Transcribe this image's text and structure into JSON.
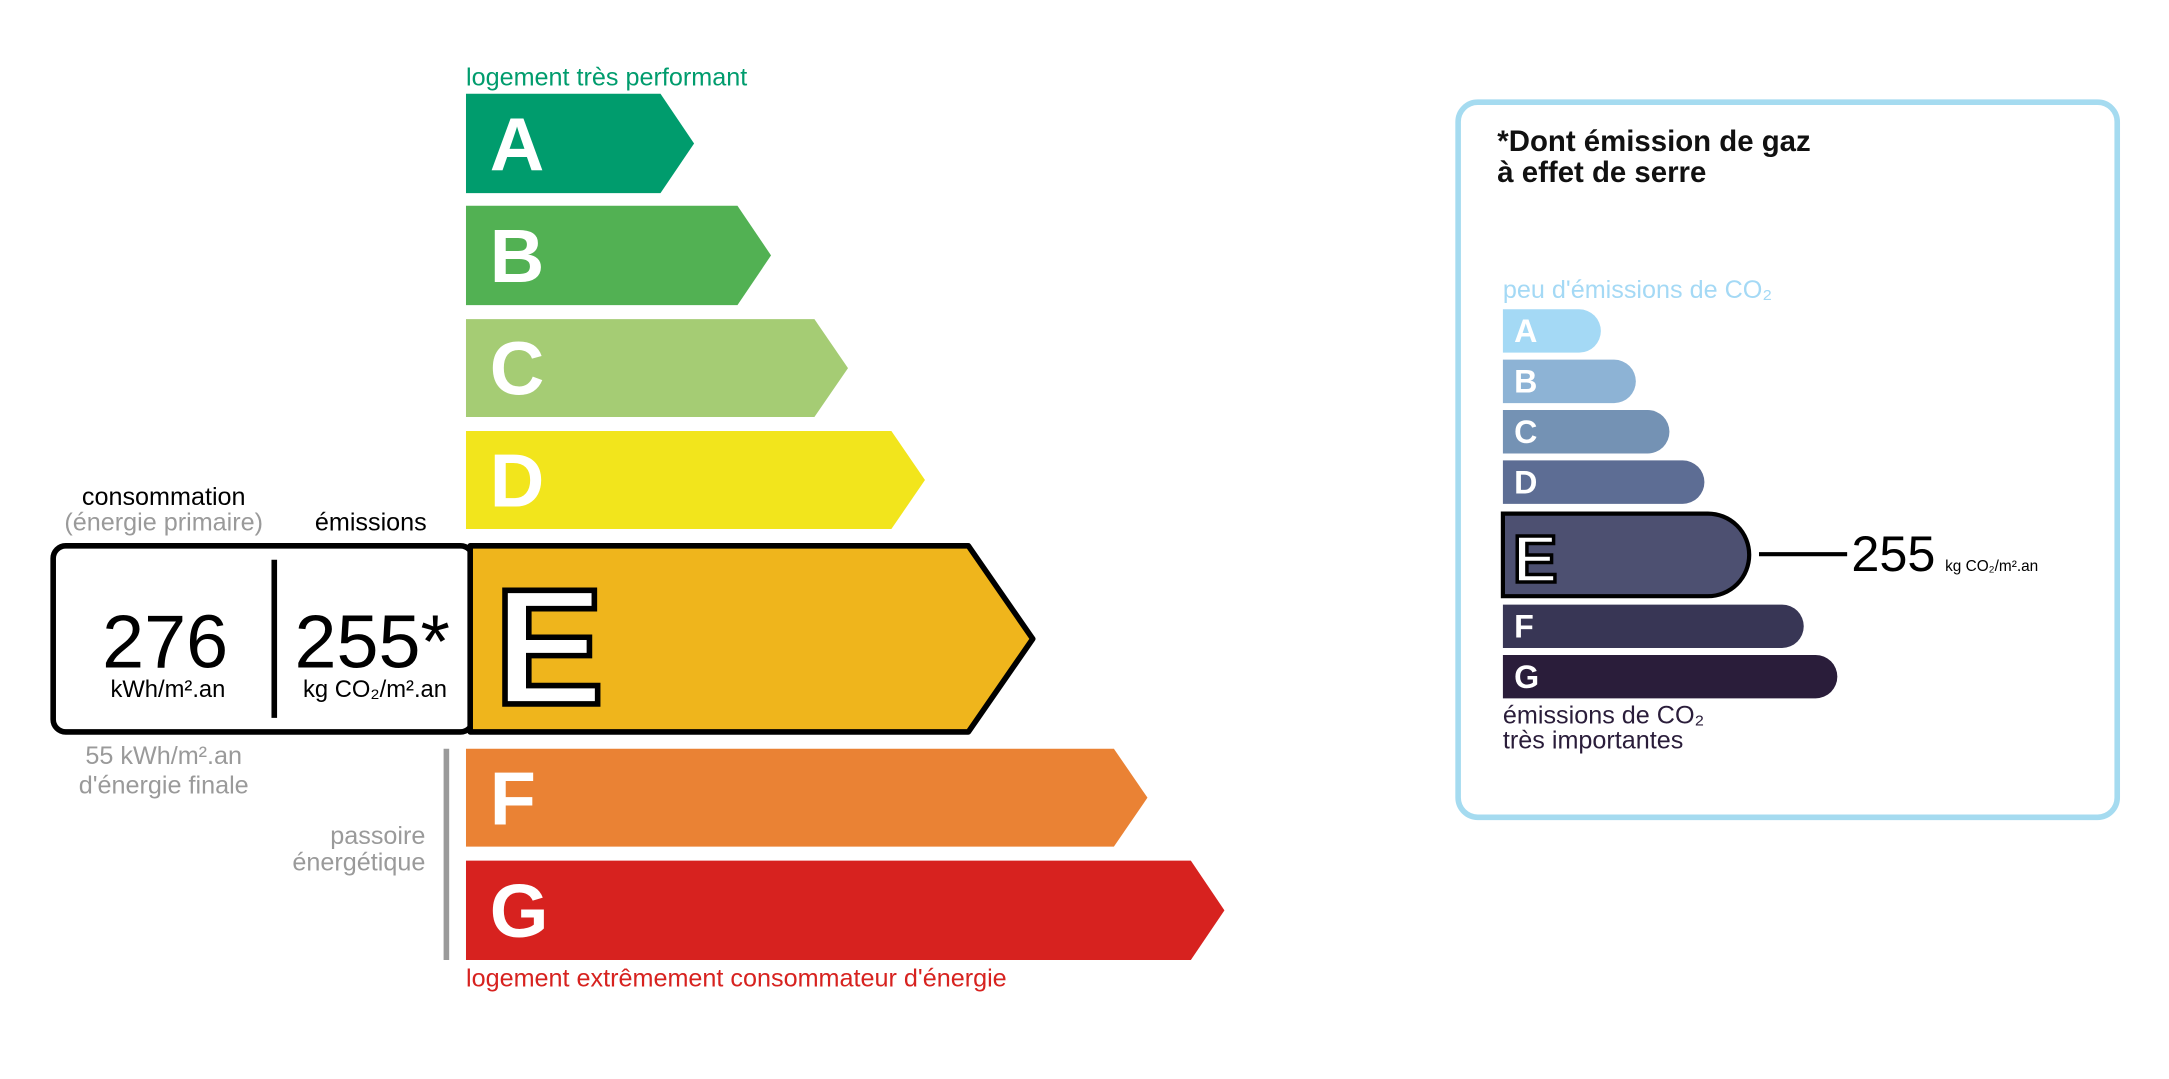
{
  "energy": {
    "top_label": "logement très performant",
    "bottom_label": "logement extrêmement consommateur d'énergie",
    "classes": [
      "A",
      "B",
      "C",
      "D",
      "E",
      "F",
      "G"
    ],
    "consumption_header": "consommation",
    "consumption_sub": "(énergie primaire)",
    "emissions_header": "émissions",
    "consumption_value": "276",
    "consumption_unit": "kWh/m².an",
    "emissions_value": "255*",
    "emissions_unit": "kg CO₂/m².an",
    "final_energy": [
      "55 kWh/m².an",
      "d'énergie finale"
    ],
    "passoire": [
      "passoire",
      "énergétique"
    ]
  },
  "ges": {
    "title": [
      "*Dont émission de gaz",
      "à effet de serre"
    ],
    "top_label": "peu d'émissions de CO₂",
    "classes": [
      "A",
      "B",
      "C",
      "D",
      "E",
      "F",
      "G"
    ],
    "value": "255",
    "unit": "kg CO₂/m².an",
    "bottom_label": [
      "émissions de CO₂",
      "très importantes"
    ]
  }
}
